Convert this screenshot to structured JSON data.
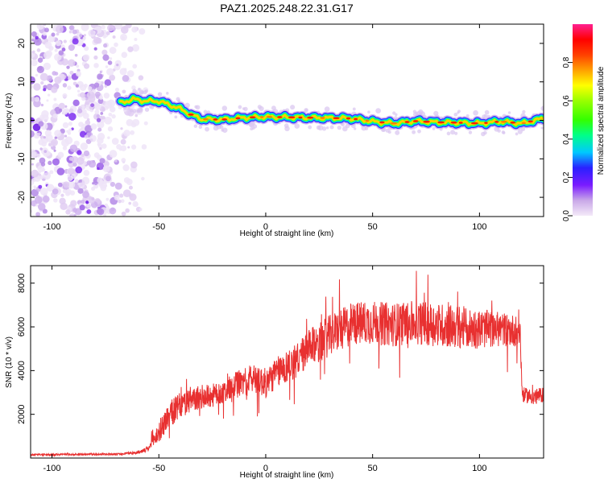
{
  "figure_title": "PAZ1.2025.248.22.31.G17",
  "chart_data": [
    {
      "type": "heatmap",
      "title": "PAZ1.2025.248.22.31.G17",
      "xlabel": "Height of straight line (km)",
      "ylabel": "Frequency (Hz)",
      "xlim": [
        -110,
        130
      ],
      "ylim": [
        -25,
        25
      ],
      "xticks": [
        -100,
        -50,
        0,
        50,
        100
      ],
      "yticks": [
        -20,
        -10,
        0,
        10,
        20
      ],
      "xtick_labels": [
        "-100",
        "-50",
        "0",
        "50",
        "100"
      ],
      "ytick_labels": [
        "-20",
        "-10",
        "0",
        "10",
        "20"
      ],
      "grid": false,
      "noise_region_x": [
        -110,
        -55
      ],
      "ridge": {
        "description": "frequency of spectral maximum vs height",
        "x": [
          -68,
          -62,
          -56,
          -50,
          -45,
          -40,
          -35,
          -30,
          -20,
          -10,
          0,
          10,
          20,
          30,
          40,
          50,
          60,
          70,
          80,
          90,
          100,
          110,
          120,
          130
        ],
        "y": [
          4.5,
          5.5,
          5.0,
          5.0,
          4.0,
          3.0,
          1.5,
          0.3,
          0.2,
          0.7,
          0.9,
          0.8,
          0.7,
          0.6,
          0.5,
          -0.3,
          -0.8,
          -0.2,
          -0.5,
          -0.6,
          -0.8,
          -0.3,
          -0.8,
          0.5
        ]
      },
      "colorbar": {
        "label": "Normalized spectral amplitude",
        "range": [
          0.0,
          1.0
        ],
        "ticks": [
          0.0,
          0.2,
          0.4,
          0.6,
          0.8
        ],
        "tick_labels": [
          "0.0",
          "0.2",
          "0.4",
          "0.6",
          "0.8"
        ]
      }
    },
    {
      "type": "line",
      "xlabel": "Height of straight line (km)",
      "ylabel": "SNR (10 * v/v)",
      "xlim": [
        -110,
        130
      ],
      "ylim": [
        0,
        8800
      ],
      "xticks": [
        -100,
        -50,
        0,
        50,
        100
      ],
      "yticks": [
        2000,
        4000,
        6000,
        8000
      ],
      "xtick_labels": [
        "-100",
        "-50",
        "0",
        "50",
        "100"
      ],
      "ytick_labels": [
        "2000",
        "4000",
        "6000",
        "8000"
      ],
      "grid": false,
      "series": [
        {
          "name": "SNR",
          "color": "#e83030",
          "x": [
            -110,
            -70,
            -60,
            -55,
            -50,
            -45,
            -40,
            -35,
            -30,
            -25,
            -20,
            -15,
            -10,
            -5,
            0,
            5,
            10,
            15,
            20,
            25,
            30,
            35,
            40,
            45,
            50,
            60,
            70,
            80,
            90,
            100,
            110,
            119,
            120,
            125,
            130
          ],
          "y": [
            150,
            180,
            250,
            400,
            1200,
            2000,
            2400,
            2600,
            2800,
            2850,
            3000,
            3300,
            3500,
            3700,
            3400,
            3900,
            4200,
            4500,
            5000,
            5300,
            5600,
            5900,
            6100,
            6200,
            6200,
            6100,
            6200,
            6100,
            6000,
            5900,
            5900,
            5800,
            2900,
            2800,
            2900
          ],
          "noise_amplitude": [
            40,
            40,
            60,
            120,
            500,
            600,
            600,
            550,
            550,
            550,
            500,
            600,
            650,
            700,
            700,
            700,
            750,
            800,
            850,
            900,
            950,
            950,
            1000,
            1000,
            1000,
            1000,
            1000,
            1000,
            1000,
            900,
            800,
            700,
            350,
            350,
            350
          ]
        }
      ]
    }
  ]
}
